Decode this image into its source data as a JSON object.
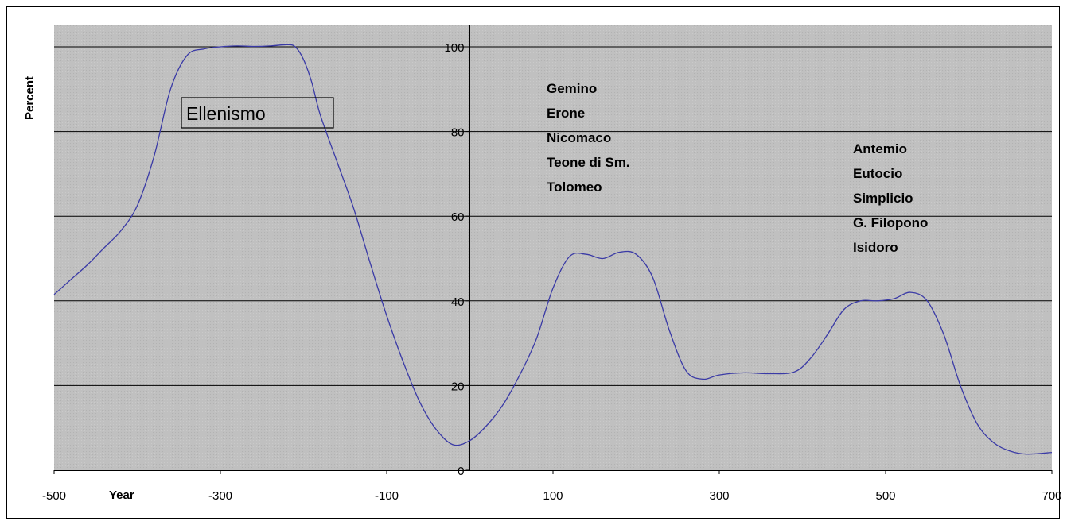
{
  "chart_data": {
    "type": "line",
    "xlabel": "Year",
    "ylabel": "Percent",
    "xlim": [
      -500,
      700
    ],
    "ylim": [
      0,
      100
    ],
    "x_ticks": [
      -500,
      -300,
      -100,
      100,
      300,
      500,
      700
    ],
    "y_ticks": [
      0,
      20,
      40,
      60,
      80,
      100
    ],
    "x_tick_labels": [
      "-500",
      "-300",
      "-100",
      "100",
      "300",
      "500",
      "700"
    ],
    "y_tick_labels": [
      "0",
      "20",
      "40",
      "60",
      "80",
      "100"
    ],
    "grid": "horizontal",
    "plot_background": "#c0c0c0",
    "line_color": "#3a3aa6",
    "series": [
      {
        "points": [
          [
            -500,
            41.5
          ],
          [
            -480,
            45
          ],
          [
            -460,
            48.5
          ],
          [
            -440,
            52.5
          ],
          [
            -420,
            56.5
          ],
          [
            -400,
            62.5
          ],
          [
            -380,
            74
          ],
          [
            -360,
            90
          ],
          [
            -340,
            98
          ],
          [
            -320,
            99.5
          ],
          [
            -300,
            100
          ],
          [
            -280,
            100.2
          ],
          [
            -260,
            100.1
          ],
          [
            -240,
            100.2
          ],
          [
            -220,
            100.5
          ],
          [
            -210,
            100
          ],
          [
            -200,
            97
          ],
          [
            -190,
            91.5
          ],
          [
            -180,
            84
          ],
          [
            -160,
            73
          ],
          [
            -140,
            62
          ],
          [
            -120,
            49
          ],
          [
            -100,
            36.5
          ],
          [
            -80,
            25.5
          ],
          [
            -60,
            16
          ],
          [
            -40,
            9.5
          ],
          [
            -20,
            6
          ],
          [
            0,
            7
          ],
          [
            20,
            10.5
          ],
          [
            40,
            15.5
          ],
          [
            60,
            22.5
          ],
          [
            80,
            31
          ],
          [
            100,
            43
          ],
          [
            120,
            50.5
          ],
          [
            140,
            51
          ],
          [
            160,
            50
          ],
          [
            180,
            51.5
          ],
          [
            200,
            51
          ],
          [
            220,
            45.5
          ],
          [
            240,
            33
          ],
          [
            260,
            23.5
          ],
          [
            280,
            21.5
          ],
          [
            300,
            22.5
          ],
          [
            330,
            23
          ],
          [
            360,
            22.8
          ],
          [
            390,
            23.2
          ],
          [
            410,
            26.5
          ],
          [
            430,
            32
          ],
          [
            450,
            38
          ],
          [
            470,
            40
          ],
          [
            490,
            40
          ],
          [
            510,
            40.5
          ],
          [
            530,
            42
          ],
          [
            550,
            40
          ],
          [
            570,
            32
          ],
          [
            590,
            20
          ],
          [
            610,
            11
          ],
          [
            630,
            6.5
          ],
          [
            650,
            4.5
          ],
          [
            670,
            3.8
          ],
          [
            700,
            4.2
          ]
        ]
      }
    ],
    "annotations": {
      "box_label": "Ellenismo",
      "group1": [
        "Gemino",
        "Erone",
        "Nicomaco",
        "Teone di Sm.",
        "Tolomeo"
      ],
      "group2": [
        "Antemio",
        "Eutocio",
        "Simplicio",
        "G. Filopono",
        "Isidoro"
      ]
    }
  }
}
